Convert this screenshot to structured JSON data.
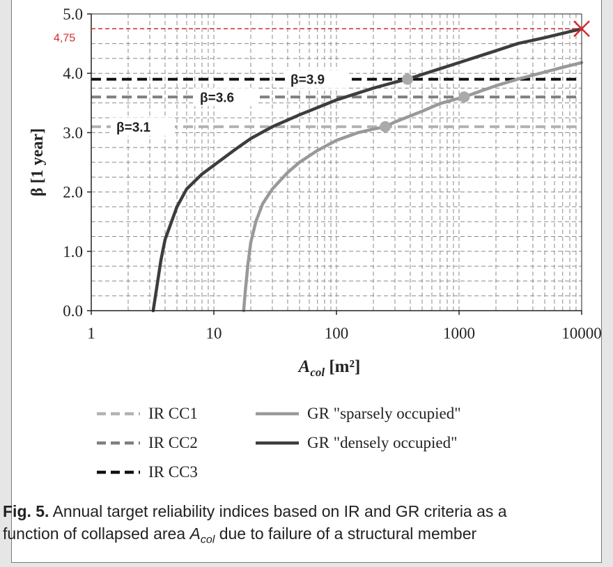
{
  "chart_data": {
    "type": "line",
    "xscale": "log",
    "xlim": [
      1,
      10000
    ],
    "ylim": [
      0,
      5
    ],
    "xticks": [
      "1",
      "10",
      "100",
      "1000",
      "10000"
    ],
    "yticks": [
      "0.0",
      "1.0",
      "2.0",
      "3.0",
      "4.0",
      "5.0"
    ],
    "grid": "on",
    "ylabel": "β [1 year]",
    "xlabel_main": "A",
    "xlabel_sub": "col",
    "xlabel_unit": " [m²]",
    "series": [
      {
        "name": "IR CC1",
        "style": "dashed",
        "color": "#b3b3b3",
        "x": [
          1,
          10000
        ],
        "y": [
          3.1,
          3.1
        ]
      },
      {
        "name": "IR CC2",
        "style": "dashed",
        "color": "#7f7f7f",
        "x": [
          1,
          10000
        ],
        "y": [
          3.6,
          3.6
        ]
      },
      {
        "name": "IR CC3",
        "style": "dashed",
        "color": "#111111",
        "x": [
          1,
          10000
        ],
        "y": [
          3.9,
          3.9
        ]
      },
      {
        "name": "GR \"sparsely occupied\"",
        "style": "solid",
        "color": "#999999",
        "x": [
          17.5,
          18,
          19,
          20,
          22,
          25,
          30,
          40,
          50,
          70,
          100,
          150,
          200,
          250,
          300,
          500,
          700,
          1000,
          1100,
          1500,
          2000,
          3000,
          5000,
          7000,
          10000
        ],
        "y": [
          0.0,
          0.3,
          0.8,
          1.15,
          1.5,
          1.8,
          2.05,
          2.33,
          2.5,
          2.7,
          2.87,
          3.0,
          3.06,
          3.1,
          3.18,
          3.36,
          3.49,
          3.58,
          3.6,
          3.7,
          3.79,
          3.9,
          4.02,
          4.1,
          4.18
        ]
      },
      {
        "name": "GR \"densely occupied\"",
        "style": "solid",
        "color": "#3d3d3d",
        "x": [
          3.2,
          3.4,
          3.7,
          4,
          5,
          6,
          8,
          10,
          15,
          20,
          30,
          50,
          100,
          200,
          300,
          380,
          500,
          1000,
          2000,
          3000,
          5000,
          10000
        ],
        "y": [
          0.0,
          0.35,
          0.85,
          1.2,
          1.75,
          2.05,
          2.3,
          2.45,
          2.72,
          2.9,
          3.1,
          3.3,
          3.55,
          3.75,
          3.85,
          3.9,
          3.98,
          4.18,
          4.38,
          4.5,
          4.6,
          4.75
        ]
      }
    ],
    "markers": [
      {
        "x": 250,
        "y": 3.1,
        "color": "#aaaaaa"
      },
      {
        "x": 1100,
        "y": 3.6,
        "color": "#aaaaaa"
      },
      {
        "x": 380,
        "y": 3.9,
        "color": "#aaaaaa"
      }
    ],
    "line_labels": [
      {
        "text": "β=3.1",
        "y": 3.1
      },
      {
        "text": "β=3.6",
        "y": 3.6
      },
      {
        "text": "β=3.9",
        "y": 3.9
      }
    ],
    "annotation": {
      "text": "4,75",
      "x": 10000,
      "y": 4.75,
      "color": "#d42a2a"
    }
  },
  "legend": [
    {
      "label": "IR CC1",
      "style": "dashed",
      "color": "#b3b3b3"
    },
    {
      "label": "GR \"sparsely occupied\"",
      "style": "solid",
      "color": "#999999"
    },
    {
      "label": "IR CC2",
      "style": "dashed",
      "color": "#7f7f7f"
    },
    {
      "label": "GR \"densely occupied\"",
      "style": "solid",
      "color": "#3d3d3d"
    },
    {
      "label": "IR CC3",
      "style": "dashed",
      "color": "#111111"
    }
  ],
  "caption": {
    "fig": "Fig. 5.",
    "line1": " Annual target reliability indices based on IR and GR criteria as a",
    "line2_a": "function of collapsed area ",
    "var_main": "A",
    "var_sub": "col",
    "line2_b": " due to failure of a structural member"
  }
}
